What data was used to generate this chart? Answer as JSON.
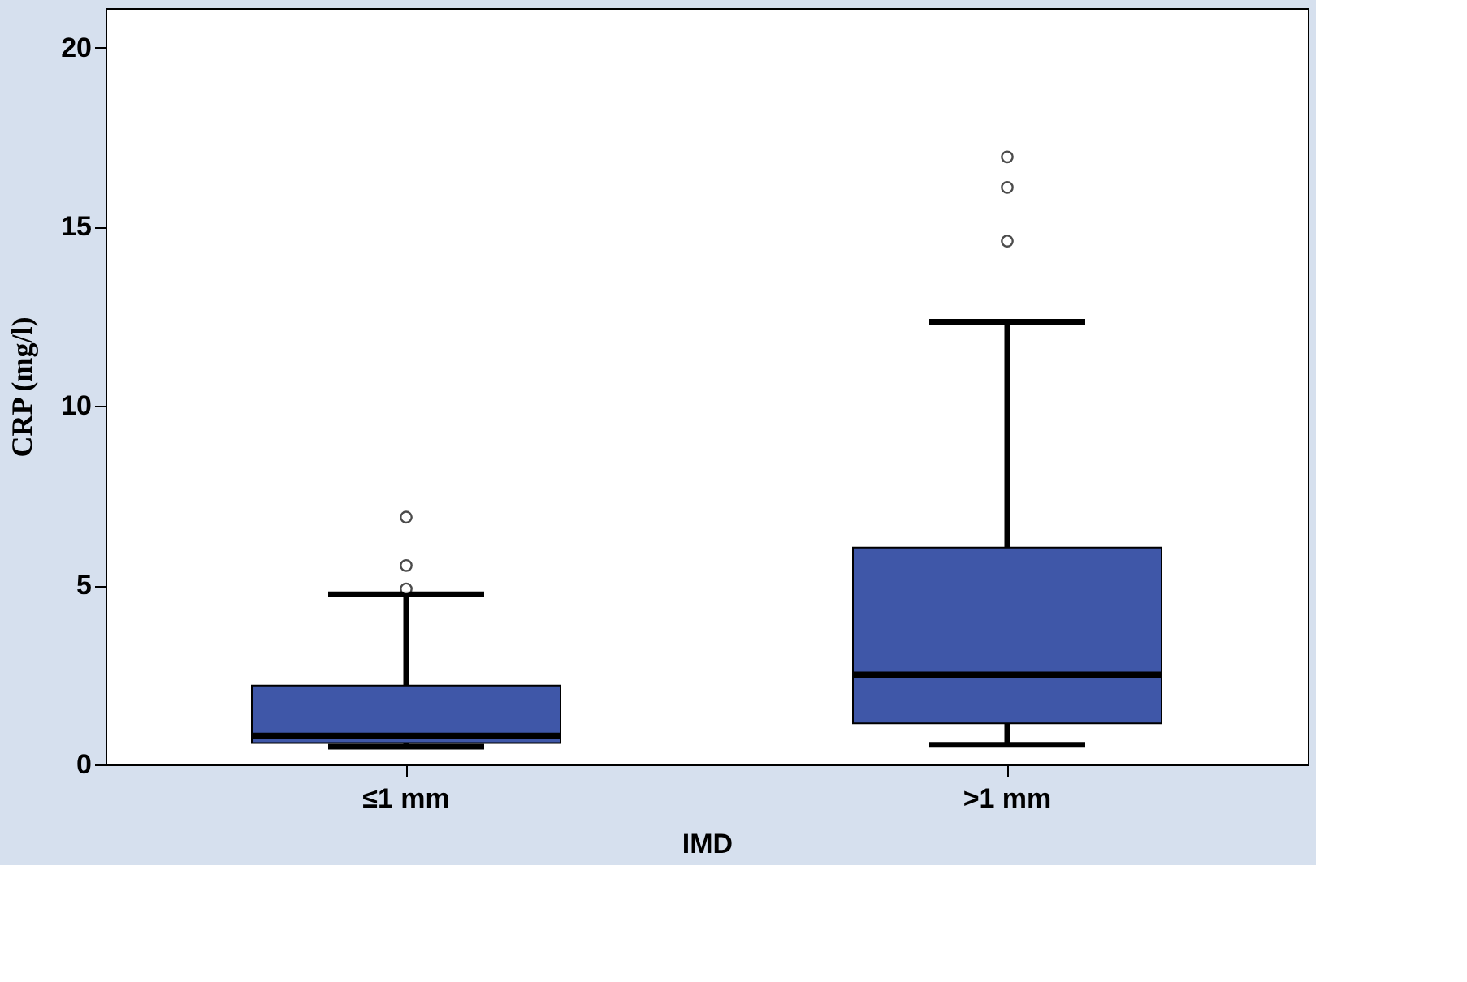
{
  "chart_data": {
    "type": "box",
    "xlabel": "IMD",
    "ylabel": "CRP (mg/l)",
    "categories": [
      "≤1 mm",
      ">1 mm"
    ],
    "series": [
      {
        "color": "#3f57a8",
        "boxes": [
          {
            "low": 0.5,
            "q1": 0.6,
            "median": 0.8,
            "q3": 2.2,
            "high": 4.75,
            "outliers": [
              4.9,
              5.55,
              6.9
            ]
          },
          {
            "low": 0.55,
            "q1": 1.15,
            "median": 2.5,
            "q3": 6.05,
            "high": 12.35,
            "outliers": [
              14.6,
              16.1,
              16.95
            ]
          }
        ]
      }
    ],
    "ylim": [
      0,
      21.1
    ],
    "yticks": [
      0,
      5,
      10,
      15,
      20
    ],
    "grid": false
  }
}
